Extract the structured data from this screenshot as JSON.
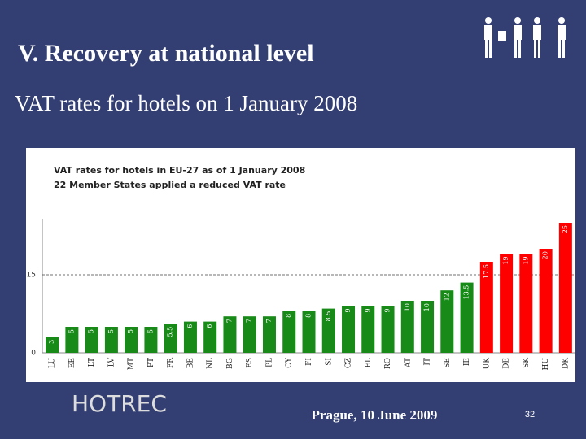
{
  "slide": {
    "title": "V. Recovery at national level",
    "subtitle": "VAT rates for hotels on 1 January 2008",
    "logo": "HOTREC",
    "footer": "Prague, 10 June 2009",
    "page": "32"
  },
  "chart_data": {
    "type": "bar",
    "title": [
      "VAT rates for hotels in EU-27 as of 1 January 2008",
      "22 Member States applied a reduced VAT rate"
    ],
    "categories": [
      "LU",
      "EE",
      "LT",
      "LV",
      "MT",
      "PT",
      "FR",
      "BE",
      "NL",
      "BG",
      "ES",
      "PL",
      "CY",
      "FI",
      "SI",
      "CZ",
      "EL",
      "RO",
      "AT",
      "IT",
      "SE",
      "IE",
      "UK",
      "DE",
      "SK",
      "HU",
      "DK"
    ],
    "values": [
      3,
      5,
      5,
      5,
      5,
      5,
      5.5,
      6,
      6,
      7,
      7,
      7,
      8,
      8,
      8.5,
      9,
      9,
      9,
      10,
      10,
      12,
      13.5,
      17.5,
      19,
      19,
      20,
      25
    ],
    "colors": [
      "#188a18",
      "#188a18",
      "#188a18",
      "#188a18",
      "#188a18",
      "#188a18",
      "#188a18",
      "#188a18",
      "#188a18",
      "#188a18",
      "#188a18",
      "#188a18",
      "#188a18",
      "#188a18",
      "#188a18",
      "#188a18",
      "#188a18",
      "#188a18",
      "#188a18",
      "#188a18",
      "#188a18",
      "#188a18",
      "#ff0000",
      "#ff0000",
      "#ff0000",
      "#ff0000",
      "#ff0000"
    ],
    "ylim": [
      0,
      25
    ],
    "yticks": [
      0,
      15
    ],
    "grid": true
  }
}
